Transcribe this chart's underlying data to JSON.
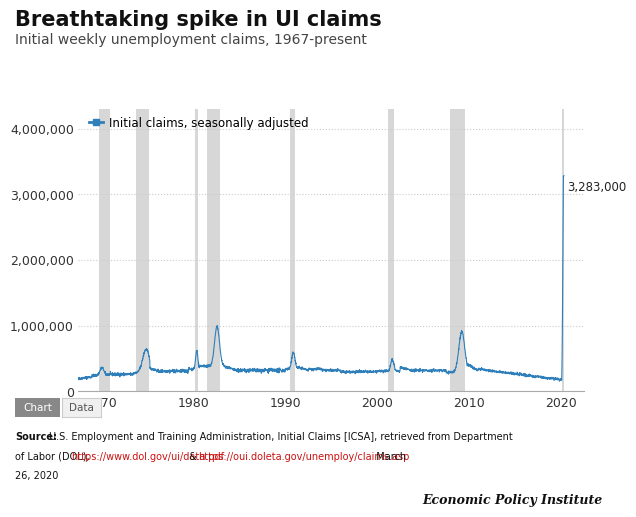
{
  "title": "Breathtaking spike in UI claims",
  "subtitle": "Initial weekly unemployment claims, 1967-present",
  "legend_label": "Initial claims, seasonally adjusted",
  "line_color": "#2e7fba",
  "line_width": 0.8,
  "recession_color": "#d3d3d3",
  "recession_alpha": 0.9,
  "recessions": [
    [
      1969.83,
      1970.92
    ],
    [
      1973.83,
      1975.17
    ],
    [
      1980.17,
      1980.58
    ],
    [
      1981.5,
      1982.92
    ],
    [
      1990.5,
      1991.08
    ],
    [
      2001.17,
      2001.83
    ],
    [
      2007.92,
      2009.5
    ],
    [
      2020.08,
      2020.35
    ]
  ],
  "ylim": [
    0,
    4300000
  ],
  "xlim": [
    1967.5,
    2022.5
  ],
  "yticks": [
    0,
    1000000,
    2000000,
    3000000,
    4000000
  ],
  "xticks": [
    1970,
    1980,
    1990,
    2000,
    2010,
    2020
  ],
  "peak_value": 3283000,
  "peak_year_x": 2020.22,
  "peak_label": "3,283,000",
  "background_color": "#ffffff",
  "epi_label": "Economic Policy Institute",
  "grid_color": "#cccccc",
  "title_fontsize": 15,
  "subtitle_fontsize": 10,
  "tick_fontsize": 9,
  "annotation_fontsize": 8.5
}
